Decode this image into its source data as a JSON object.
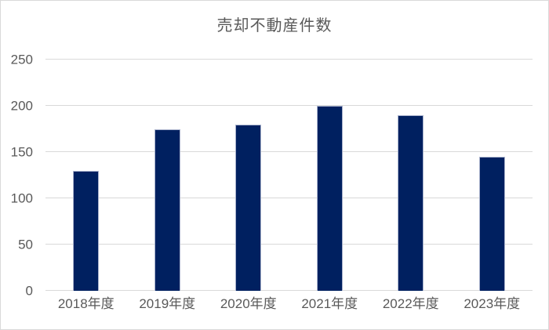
{
  "chart_data": {
    "type": "bar",
    "title": "売却不動産件数",
    "categories": [
      "2018年度",
      "2019年度",
      "2020年度",
      "2021年度",
      "2022年度",
      "2023年度"
    ],
    "values": [
      130,
      175,
      180,
      200,
      190,
      145
    ],
    "xlabel": "",
    "ylabel": "",
    "ylim": [
      0,
      250
    ],
    "yticks": [
      0,
      50,
      100,
      150,
      200,
      250
    ],
    "grid": true,
    "legend": false,
    "colors": {
      "bar_fill": "#002060",
      "bar_border": "#a9b2cc",
      "gridline": "#d9d9d9",
      "text": "#595959",
      "background": "#ffffff",
      "frame_border": "#d9d9d9"
    }
  }
}
